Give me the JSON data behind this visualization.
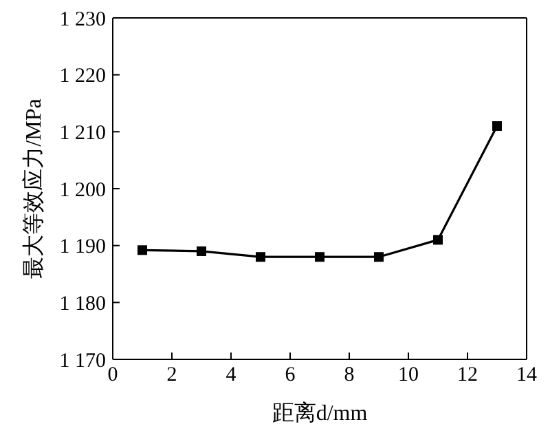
{
  "chart_data": {
    "type": "line",
    "xlabel": "距离d/mm",
    "ylabel": "最大等效应力/MPa",
    "x": [
      1,
      3,
      5,
      7,
      9,
      11,
      13
    ],
    "series": [
      {
        "color": "#000000",
        "values": [
          1189.2,
          1189,
          1188,
          1188,
          1188,
          1191,
          1211
        ]
      }
    ],
    "xlim": [
      0,
      14
    ],
    "xticks": [
      0,
      2,
      4,
      6,
      8,
      10,
      12,
      14
    ],
    "ylim": [
      1170,
      1230
    ],
    "yticks": [
      {
        "value": 1170,
        "label": "1 170"
      },
      {
        "value": 1180,
        "label": "1 180"
      },
      {
        "value": 1190,
        "label": "1 190"
      },
      {
        "value": 1200,
        "label": "1 200"
      },
      {
        "value": 1210,
        "label": "1 210"
      },
      {
        "value": 1220,
        "label": "1 220"
      },
      {
        "value": 1230,
        "label": "1 230"
      }
    ],
    "marker": "square",
    "line_style": "solid",
    "grid": false,
    "legend": false
  }
}
